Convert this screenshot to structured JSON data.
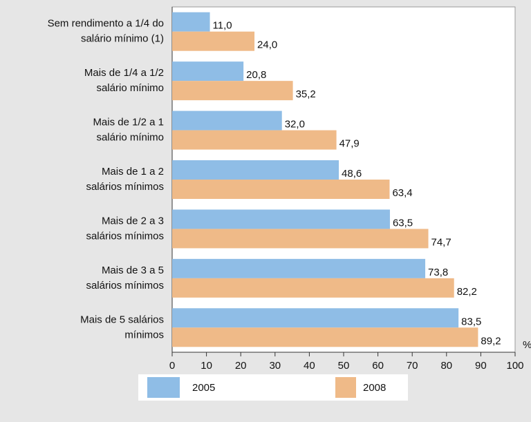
{
  "chart_data": {
    "type": "hbar",
    "categories": [
      [
        "Sem rendimento a 1/4 do",
        "salário mínimo (1)"
      ],
      [
        "Mais de 1/4 a 1/2",
        "salário mínimo"
      ],
      [
        "Mais de 1/2 a 1",
        "salário mínimo"
      ],
      [
        "Mais de 1 a 2",
        "salários mínimos"
      ],
      [
        "Mais de 2 a 3",
        "salários mínimos"
      ],
      [
        "Mais de 3 a 5",
        "salários mínimos"
      ],
      [
        "Mais de 5 salários",
        "mínimos"
      ]
    ],
    "series": [
      {
        "name": "2005",
        "color": "#8fbde6",
        "values": [
          11.0,
          20.8,
          32.0,
          48.6,
          63.5,
          73.8,
          83.5
        ],
        "value_labels": [
          "11,0",
          "20,8",
          "32,0",
          "48,6",
          "63,5",
          "73,8",
          "83,5"
        ]
      },
      {
        "name": "2008",
        "color": "#efba88",
        "values": [
          24.0,
          35.2,
          47.9,
          63.4,
          74.7,
          82.2,
          89.2
        ],
        "value_labels": [
          "24,0",
          "35,2",
          "47,9",
          "63,4",
          "74,7",
          "82,2",
          "89,2"
        ]
      }
    ],
    "x_unit": "%",
    "xlim": [
      0,
      100
    ],
    "xticks": [
      0,
      10,
      20,
      30,
      40,
      50,
      60,
      70,
      80,
      90,
      100
    ],
    "grid": false
  }
}
